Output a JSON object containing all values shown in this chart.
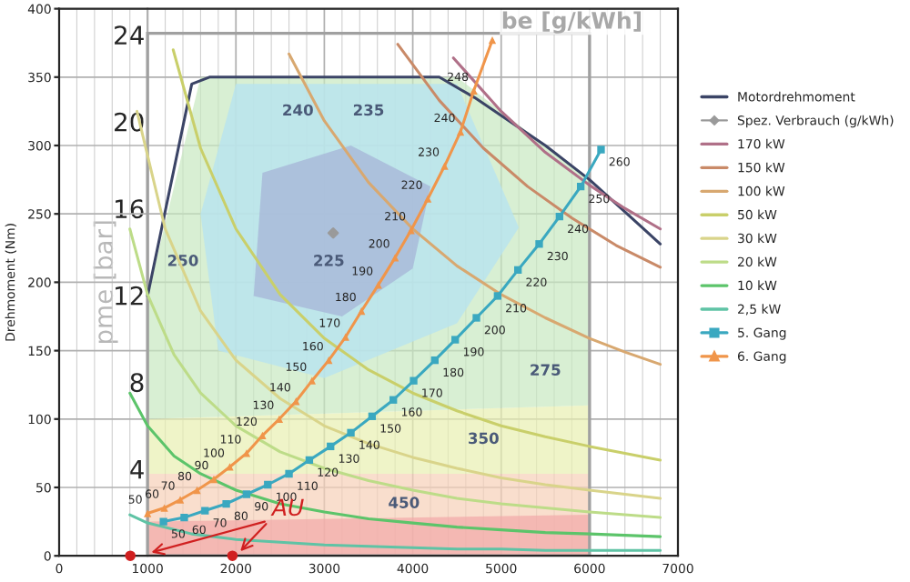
{
  "chart_data": {
    "type": "line",
    "ylabel": "Drehmoment (Nm)",
    "y2label": "pme [bar]",
    "xlim": [
      0,
      7000
    ],
    "xticks": [
      0,
      1000,
      2000,
      3000,
      4000,
      5000,
      6000,
      7000
    ],
    "ylim": [
      0,
      400
    ],
    "yticks": [
      0,
      50,
      100,
      150,
      200,
      250,
      300,
      350,
      400
    ],
    "y2lim": [
      0,
      25.2
    ],
    "y2ticks": [
      4,
      8,
      12,
      16,
      20,
      24
    ],
    "grid": true,
    "legend": "right",
    "line_style": "solid",
    "annotations": [
      "be [g/kWh]",
      "225",
      "235",
      "240",
      "250",
      "275",
      "350",
      "450",
      "AU",
      {
        "text": "50",
        "x": 1180,
        "y": 25
      },
      {
        "text": "60",
        "x": 1415,
        "y": 28
      },
      {
        "text": "70",
        "x": 1650,
        "y": 33
      },
      {
        "text": "80",
        "x": 1890,
        "y": 38
      },
      {
        "text": "90",
        "x": 2120,
        "y": 45
      },
      {
        "text": "100",
        "x": 2360,
        "y": 52
      },
      {
        "text": "110",
        "x": 2600,
        "y": 60
      },
      {
        "text": "120",
        "x": 2830,
        "y": 70
      },
      {
        "text": "130",
        "x": 3070,
        "y": 80
      },
      {
        "text": "140",
        "x": 3300,
        "y": 90
      },
      {
        "text": "150",
        "x": 3540,
        "y": 102
      },
      {
        "text": "160",
        "x": 3780,
        "y": 114
      },
      {
        "text": "170",
        "x": 4010,
        "y": 128
      },
      {
        "text": "180",
        "x": 4250,
        "y": 143
      },
      {
        "text": "190",
        "x": 4480,
        "y": 158
      },
      {
        "text": "200",
        "x": 4720,
        "y": 174
      },
      {
        "text": "210",
        "x": 4960,
        "y": 190
      },
      {
        "text": "220",
        "x": 5190,
        "y": 209
      },
      {
        "text": "230",
        "x": 5430,
        "y": 228
      },
      {
        "text": "240",
        "x": 5660,
        "y": 248
      },
      {
        "text": "250",
        "x": 5900,
        "y": 270
      },
      {
        "text": "260",
        "x": 6130,
        "y": 297
      },
      {
        "text": "50",
        "x": 1000,
        "y": 31
      },
      {
        "text": "60",
        "x": 1190,
        "y": 35
      },
      {
        "text": "70",
        "x": 1370,
        "y": 41
      },
      {
        "text": "80",
        "x": 1560,
        "y": 48
      },
      {
        "text": "90",
        "x": 1750,
        "y": 56
      },
      {
        "text": "100",
        "x": 1930,
        "y": 65
      },
      {
        "text": "110",
        "x": 2120,
        "y": 75
      },
      {
        "text": "120",
        "x": 2300,
        "y": 88
      },
      {
        "text": "130",
        "x": 2490,
        "y": 100
      },
      {
        "text": "140",
        "x": 2680,
        "y": 113
      },
      {
        "text": "150",
        "x": 2860,
        "y": 128
      },
      {
        "text": "160",
        "x": 3050,
        "y": 143
      },
      {
        "text": "170",
        "x": 3240,
        "y": 160
      },
      {
        "text": "180",
        "x": 3420,
        "y": 179
      },
      {
        "text": "190",
        "x": 3610,
        "y": 198
      },
      {
        "text": "200",
        "x": 3800,
        "y": 218
      },
      {
        "text": "210",
        "x": 3980,
        "y": 238
      },
      {
        "text": "220",
        "x": 4170,
        "y": 261
      },
      {
        "text": "230",
        "x": 4360,
        "y": 285
      },
      {
        "text": "240",
        "x": 4540,
        "y": 310
      },
      {
        "text": "248",
        "x": 4690,
        "y": 340
      }
    ],
    "series": [
      {
        "name": "Motordrehmoment",
        "color": "#3b4466",
        "x": [
          1000,
          1500,
          1700,
          4300,
          4700,
          5500,
          6000,
          6800
        ],
        "values": [
          190,
          345,
          350,
          350,
          335,
          300,
          275,
          228
        ],
        "marker": "none"
      },
      {
        "name": "Spez. Verbrauch (g/kWh)",
        "type": "scatter",
        "color": "#9a9a9a",
        "x": [
          3100
        ],
        "values": [
          236
        ],
        "marker": "diamond"
      },
      {
        "name": "170 kW",
        "color": "#b07088",
        "x": [
          4460,
          5000,
          5500,
          6000,
          6400,
          6800
        ],
        "values": [
          364,
          325,
          295,
          271,
          254,
          239
        ],
        "marker": "none"
      },
      {
        "name": "150 kW",
        "color": "#c98a68",
        "x": [
          3830,
          4300,
          4800,
          5300,
          5800,
          6300,
          6800
        ],
        "values": [
          374,
          333,
          298,
          270,
          247,
          227,
          211
        ],
        "marker": "none"
      },
      {
        "name": "100 kW",
        "color": "#d8a870",
        "x": [
          2600,
          3000,
          3500,
          4000,
          4500,
          5000,
          5500,
          6000,
          6400,
          6800
        ],
        "values": [
          367,
          318,
          273,
          239,
          212,
          191,
          174,
          159,
          149,
          140
        ],
        "marker": "none"
      },
      {
        "name": "50 kW",
        "color": "#c9cf6a",
        "x": [
          1290,
          1600,
          2000,
          2500,
          3000,
          3500,
          4000,
          4500,
          5000,
          5500,
          6000,
          6400,
          6800
        ],
        "values": [
          370,
          298,
          239,
          191,
          159,
          136,
          119,
          106,
          95,
          87,
          80,
          75,
          70
        ],
        "marker": "none"
      },
      {
        "name": "30 kW",
        "color": "#d9d48a",
        "x": [
          880,
          1200,
          1600,
          2000,
          2500,
          3000,
          3500,
          4000,
          4500,
          5000,
          5500,
          6000,
          6400,
          6800
        ],
        "values": [
          325,
          239,
          179,
          143,
          115,
          95,
          82,
          72,
          64,
          57,
          52,
          48,
          45,
          42
        ],
        "marker": "none"
      },
      {
        "name": "20 kW",
        "color": "#bddc88",
        "x": [
          800,
          1000,
          1300,
          1600,
          2000,
          2500,
          3000,
          3500,
          4000,
          4500,
          5000,
          5500,
          6000,
          6400,
          6800
        ],
        "values": [
          239,
          191,
          147,
          119,
          95,
          76,
          64,
          55,
          48,
          42,
          38,
          35,
          32,
          30,
          28
        ],
        "marker": "none"
      },
      {
        "name": "10 kW",
        "color": "#5cc46a",
        "x": [
          800,
          1000,
          1300,
          1600,
          2000,
          2500,
          3000,
          3500,
          4000,
          4500,
          5000,
          5500,
          6000,
          6400,
          6800
        ],
        "values": [
          119,
          95,
          73,
          60,
          48,
          38,
          32,
          27,
          24,
          21,
          19,
          17,
          16,
          15,
          14
        ],
        "marker": "none"
      },
      {
        "name": "2,5 kW",
        "color": "#5fc3a5",
        "x": [
          800,
          1000,
          1500,
          2000,
          2500,
          3000,
          3500,
          4000,
          4500,
          5000,
          5500,
          6000,
          6400,
          6800
        ],
        "values": [
          30,
          24,
          16,
          12,
          10,
          8,
          7,
          6,
          5,
          5,
          4,
          4,
          4,
          4
        ],
        "marker": "none"
      },
      {
        "name": "5. Gang",
        "color": "#3aa8c0",
        "marker": "square",
        "x": [
          1180,
          1415,
          1650,
          1890,
          2120,
          2360,
          2600,
          2830,
          3070,
          3300,
          3540,
          3780,
          4010,
          4250,
          4480,
          4720,
          4960,
          5190,
          5430,
          5660,
          5900,
          6130
        ],
        "values": [
          25,
          28,
          33,
          38,
          45,
          52,
          60,
          70,
          80,
          90,
          102,
          114,
          128,
          143,
          158,
          174,
          190,
          209,
          228,
          248,
          270,
          297
        ]
      },
      {
        "name": "6. Gang",
        "color": "#f0954a",
        "marker": "triangle",
        "x": [
          1000,
          1190,
          1370,
          1560,
          1750,
          1930,
          2120,
          2300,
          2490,
          2680,
          2860,
          3050,
          3240,
          3420,
          3610,
          3800,
          3980,
          4170,
          4360,
          4540,
          4690,
          4900
        ],
        "values": [
          31,
          35,
          41,
          48,
          56,
          65,
          75,
          88,
          100,
          113,
          128,
          143,
          160,
          179,
          198,
          218,
          238,
          261,
          285,
          310,
          340,
          377
        ]
      }
    ]
  }
}
